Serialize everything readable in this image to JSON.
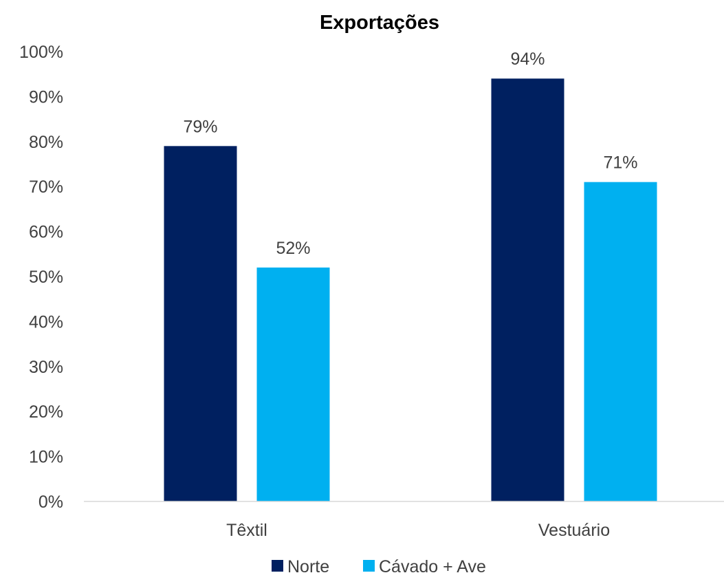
{
  "chart_data": {
    "type": "bar",
    "title": "Exportações",
    "xlabel": "",
    "ylabel": "",
    "categories": [
      "Têxtil",
      "Vestuário"
    ],
    "series": [
      {
        "name": "Norte",
        "values": [
          79,
          94
        ],
        "color": "#002060"
      },
      {
        "name": "Cávado + Ave",
        "values": [
          52,
          71
        ],
        "color": "#00B0F0"
      }
    ],
    "ylim": [
      0,
      100
    ],
    "yticks": [
      0,
      10,
      20,
      30,
      40,
      50,
      60,
      70,
      80,
      90,
      100
    ],
    "ytick_suffix": "%",
    "data_labels": [
      [
        "79%",
        "94%"
      ],
      [
        "52%",
        "71%"
      ]
    ],
    "grid": false,
    "legend_position": "bottom"
  },
  "colors": {
    "text": "#404040",
    "title": "#000000",
    "axis": "#D9D9D9"
  }
}
